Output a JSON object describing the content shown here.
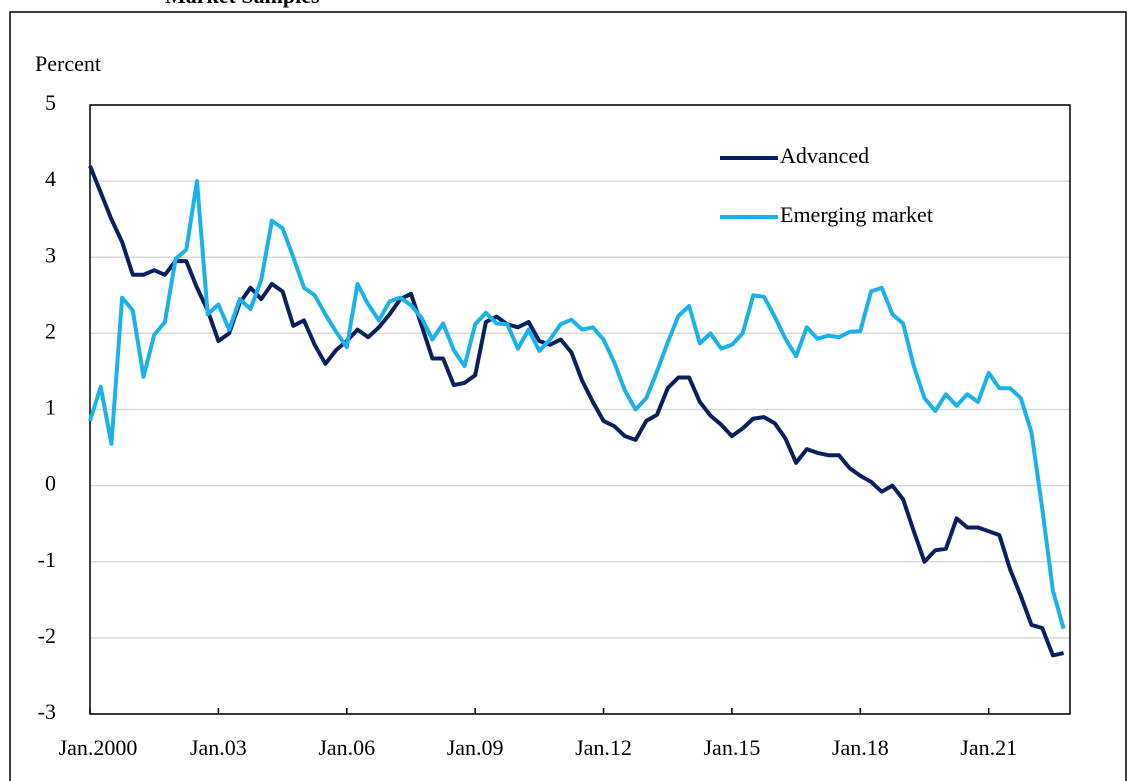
{
  "chart_data": {
    "type": "line",
    "title": "Market Samples",
    "y_label": "Percent",
    "x": [
      2000,
      2000.25,
      2000.5,
      2000.75,
      2001,
      2001.25,
      2001.5,
      2001.75,
      2002,
      2002.25,
      2002.5,
      2002.75,
      2003,
      2003.25,
      2003.5,
      2003.75,
      2004,
      2004.25,
      2004.5,
      2004.75,
      2005,
      2005.25,
      2005.5,
      2005.75,
      2006,
      2006.25,
      2006.5,
      2006.75,
      2007,
      2007.25,
      2007.5,
      2007.75,
      2008,
      2008.25,
      2008.5,
      2008.75,
      2009,
      2009.25,
      2009.5,
      2009.75,
      2010,
      2010.25,
      2010.5,
      2010.75,
      2011,
      2011.25,
      2011.5,
      2011.75,
      2012,
      2012.25,
      2012.5,
      2012.75,
      2013,
      2013.25,
      2013.5,
      2013.75,
      2014,
      2014.25,
      2014.5,
      2014.75,
      2015,
      2015.25,
      2015.5,
      2015.75,
      2016,
      2016.25,
      2016.5,
      2016.75,
      2017,
      2017.25,
      2017.5,
      2017.75,
      2018,
      2018.25,
      2018.5,
      2018.75,
      2019,
      2019.25,
      2019.5,
      2019.75,
      2020,
      2020.25,
      2020.5,
      2020.75,
      2021,
      2021.25,
      2021.5,
      2021.75,
      2022,
      2022.25,
      2022.5,
      2022.75
    ],
    "series": [
      {
        "name": "Advanced",
        "color": "#0b1f5e",
        "values": [
          4.2,
          3.85,
          3.5,
          3.2,
          2.77,
          2.77,
          2.83,
          2.77,
          2.95,
          2.95,
          2.6,
          2.3,
          1.9,
          2.0,
          2.4,
          2.6,
          2.45,
          2.65,
          2.55,
          2.1,
          2.17,
          1.85,
          1.6,
          1.78,
          1.9,
          2.05,
          1.95,
          2.08,
          2.25,
          2.45,
          2.52,
          2.1,
          1.67,
          1.67,
          1.32,
          1.35,
          1.45,
          2.15,
          2.22,
          2.12,
          2.08,
          2.15,
          1.9,
          1.85,
          1.92,
          1.75,
          1.38,
          1.1,
          0.85,
          0.78,
          0.65,
          0.6,
          0.85,
          0.93,
          1.28,
          1.42,
          1.42,
          1.1,
          0.92,
          0.8,
          0.65,
          0.75,
          0.88,
          0.9,
          0.82,
          0.62,
          0.3,
          0.48,
          0.43,
          0.4,
          0.4,
          0.23,
          0.13,
          0.05,
          -0.08,
          0.0,
          -0.18,
          -0.6,
          -1.0,
          -0.85,
          -0.83,
          -0.43,
          -0.55,
          -0.55,
          -0.6,
          -0.65,
          -1.1,
          -1.45,
          -1.83,
          -1.87,
          -2.23,
          -2.2
        ]
      },
      {
        "name": "Emerging market",
        "color": "#1ab2ea",
        "values": [
          0.85,
          1.3,
          0.55,
          2.47,
          2.3,
          1.43,
          1.98,
          2.15,
          2.98,
          3.1,
          4.0,
          2.25,
          2.38,
          2.05,
          2.45,
          2.32,
          2.7,
          3.48,
          3.38,
          3.0,
          2.6,
          2.5,
          2.25,
          2.02,
          1.82,
          2.65,
          2.38,
          2.17,
          2.42,
          2.47,
          2.37,
          2.2,
          1.92,
          2.13,
          1.78,
          1.57,
          2.12,
          2.27,
          2.13,
          2.12,
          1.8,
          2.05,
          1.77,
          1.92,
          2.12,
          2.18,
          2.05,
          2.08,
          1.92,
          1.62,
          1.25,
          1.0,
          1.15,
          1.5,
          1.88,
          2.23,
          2.36,
          1.87,
          2.0,
          1.8,
          1.85,
          2.0,
          2.5,
          2.48,
          2.22,
          1.93,
          1.7,
          2.08,
          1.93,
          1.97,
          1.95,
          2.02,
          2.03,
          2.55,
          2.6,
          2.25,
          2.13,
          1.57,
          1.15,
          0.98,
          1.2,
          1.05,
          1.2,
          1.1,
          1.48,
          1.28,
          1.28,
          1.15,
          0.7,
          -0.3,
          -1.38,
          -1.88
        ]
      }
    ],
    "xlim": [
      2000,
      2022.9
    ],
    "xticks": [
      {
        "value": 2000,
        "label": "Jan.2000"
      },
      {
        "value": 2003,
        "label": "Jan.03"
      },
      {
        "value": 2006,
        "label": "Jan.06"
      },
      {
        "value": 2009,
        "label": "Jan.09"
      },
      {
        "value": 2012,
        "label": "Jan.12"
      },
      {
        "value": 2015,
        "label": "Jan.15"
      },
      {
        "value": 2018,
        "label": "Jan.18"
      },
      {
        "value": 2021,
        "label": "Jan.21"
      }
    ],
    "ylim": [
      -3,
      5
    ],
    "yticks": [
      -3,
      -2,
      -1,
      0,
      1,
      2,
      3,
      4,
      5
    ],
    "grid": true,
    "legend": "upper right"
  }
}
